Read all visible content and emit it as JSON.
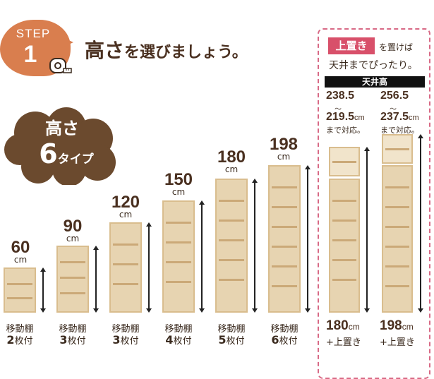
{
  "step": {
    "label": "STEP",
    "number": "1"
  },
  "heading": {
    "main": "高さ",
    "rest": "を選びましょう。"
  },
  "cloud": {
    "line1": "高さ",
    "count": "6",
    "unit": "タイプ"
  },
  "shelves": [
    {
      "height": "60",
      "unit": "cm",
      "caption1": "移動棚",
      "count": "2",
      "caption2": "枚付"
    },
    {
      "height": "90",
      "unit": "cm",
      "caption1": "移動棚",
      "count": "3",
      "caption2": "枚付"
    },
    {
      "height": "120",
      "unit": "cm",
      "caption1": "移動棚",
      "count": "3",
      "caption2": "枚付"
    },
    {
      "height": "150",
      "unit": "cm",
      "caption1": "移動棚",
      "count": "4",
      "caption2": "枚付"
    },
    {
      "height": "180",
      "unit": "cm",
      "caption1": "移動棚",
      "count": "5",
      "caption2": "枚付"
    },
    {
      "height": "198",
      "unit": "cm",
      "caption1": "移動棚",
      "count": "6",
      "caption2": "枚付"
    }
  ],
  "topper": {
    "tag": "上置き",
    "tag_after": "を置けば",
    "line2": "天井までぴったり。",
    "ceiling_label": "天井高",
    "options": [
      {
        "top": "238.5",
        "tilde": "〜",
        "bottom": "219.5",
        "unit": "cm",
        "note": "まで対応。",
        "height": "180",
        "height_unit": "cm",
        "plus": "+上置き"
      },
      {
        "top": "256.5",
        "tilde": "〜",
        "bottom": "237.5",
        "unit": "cm",
        "note": "まで対応。",
        "height": "198",
        "height_unit": "cm",
        "plus": "+上置き"
      }
    ]
  },
  "colors": {
    "accent": "#d97e4e",
    "brand_brown": "#6b4a2e",
    "pink": "#d8506a",
    "wood": "#e7d4b1"
  }
}
